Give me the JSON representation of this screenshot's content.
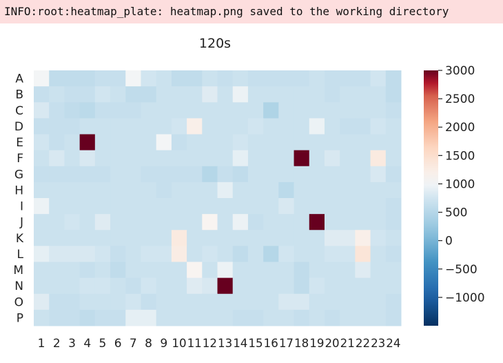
{
  "log": {
    "message": "INFO:root:heatmap_plate: heatmap.png saved to the working directory"
  },
  "chart_data": {
    "type": "heatmap",
    "title": "120s",
    "rows": [
      "A",
      "B",
      "C",
      "D",
      "E",
      "F",
      "G",
      "H",
      "I",
      "J",
      "K",
      "L",
      "M",
      "N",
      "O",
      "P"
    ],
    "columns": [
      "1",
      "2",
      "3",
      "4",
      "5",
      "6",
      "7",
      "8",
      "9",
      "10",
      "11",
      "12",
      "13",
      "14",
      "15",
      "16",
      "17",
      "18",
      "19",
      "20",
      "21",
      "22",
      "23",
      "24"
    ],
    "values": [
      [
        1000,
        600,
        600,
        600,
        650,
        650,
        1000,
        750,
        700,
        600,
        600,
        700,
        650,
        700,
        650,
        650,
        650,
        650,
        700,
        650,
        650,
        650,
        750,
        600
      ],
      [
        650,
        700,
        650,
        650,
        750,
        700,
        600,
        600,
        700,
        700,
        700,
        850,
        700,
        950,
        700,
        700,
        700,
        700,
        700,
        650,
        700,
        700,
        700,
        600
      ],
      [
        800,
        650,
        600,
        550,
        650,
        650,
        650,
        700,
        700,
        700,
        700,
        700,
        700,
        700,
        700,
        450,
        700,
        700,
        700,
        700,
        700,
        700,
        700,
        650
      ],
      [
        650,
        650,
        650,
        700,
        700,
        700,
        700,
        700,
        700,
        750,
        1200,
        700,
        700,
        700,
        750,
        700,
        700,
        700,
        950,
        700,
        650,
        650,
        750,
        700
      ],
      [
        750,
        650,
        700,
        3000,
        700,
        700,
        700,
        700,
        1000,
        650,
        700,
        700,
        700,
        750,
        700,
        700,
        700,
        700,
        700,
        700,
        700,
        700,
        700,
        700
      ],
      [
        700,
        800,
        700,
        800,
        700,
        700,
        700,
        700,
        700,
        700,
        700,
        700,
        700,
        900,
        700,
        700,
        700,
        3000,
        700,
        800,
        700,
        700,
        1300,
        700
      ],
      [
        650,
        650,
        650,
        650,
        650,
        700,
        700,
        650,
        650,
        650,
        650,
        500,
        650,
        600,
        700,
        700,
        700,
        700,
        700,
        700,
        700,
        700,
        800,
        650
      ],
      [
        700,
        700,
        700,
        700,
        700,
        700,
        700,
        700,
        650,
        700,
        700,
        700,
        900,
        700,
        700,
        700,
        550,
        700,
        700,
        700,
        700,
        700,
        700,
        700
      ],
      [
        950,
        700,
        700,
        700,
        700,
        700,
        700,
        700,
        700,
        700,
        700,
        700,
        700,
        700,
        700,
        700,
        800,
        700,
        700,
        700,
        700,
        700,
        700,
        650
      ],
      [
        700,
        700,
        750,
        700,
        850,
        700,
        700,
        700,
        700,
        700,
        700,
        1100,
        700,
        950,
        650,
        700,
        700,
        700,
        3000,
        700,
        700,
        700,
        700,
        650
      ],
      [
        700,
        700,
        700,
        700,
        700,
        700,
        700,
        700,
        700,
        1300,
        700,
        700,
        700,
        700,
        700,
        700,
        700,
        700,
        700,
        850,
        850,
        1200,
        750,
        700
      ],
      [
        900,
        800,
        800,
        800,
        750,
        650,
        700,
        750,
        750,
        1250,
        700,
        750,
        700,
        600,
        700,
        500,
        750,
        700,
        700,
        750,
        750,
        1400,
        700,
        650
      ],
      [
        700,
        700,
        700,
        650,
        700,
        600,
        700,
        700,
        700,
        700,
        1100,
        700,
        950,
        700,
        700,
        700,
        700,
        600,
        700,
        700,
        700,
        850,
        700,
        700
      ],
      [
        700,
        700,
        700,
        750,
        750,
        700,
        650,
        750,
        700,
        700,
        850,
        800,
        3000,
        700,
        700,
        700,
        700,
        600,
        750,
        700,
        700,
        700,
        700,
        700
      ],
      [
        850,
        650,
        650,
        700,
        700,
        700,
        750,
        650,
        700,
        700,
        700,
        700,
        700,
        700,
        700,
        700,
        800,
        800,
        700,
        700,
        700,
        700,
        700,
        650
      ],
      [
        700,
        650,
        650,
        600,
        650,
        650,
        900,
        900,
        700,
        700,
        700,
        700,
        700,
        650,
        650,
        700,
        700,
        650,
        700,
        650,
        700,
        700,
        700,
        650
      ]
    ],
    "colormap": "RdBu_r",
    "vmin": -1500,
    "vmax": 3000,
    "colorbar_ticks": [
      "3000",
      "2500",
      "2000",
      "1500",
      "1000",
      "500",
      "0",
      "−500",
      "−1000"
    ],
    "colorbar_tick_values": [
      3000,
      2500,
      2000,
      1500,
      1000,
      500,
      0,
      -500,
      -1000
    ],
    "colors": {
      "low": "#053061",
      "mid": "#f7f7f7",
      "high": "#67001f"
    }
  }
}
